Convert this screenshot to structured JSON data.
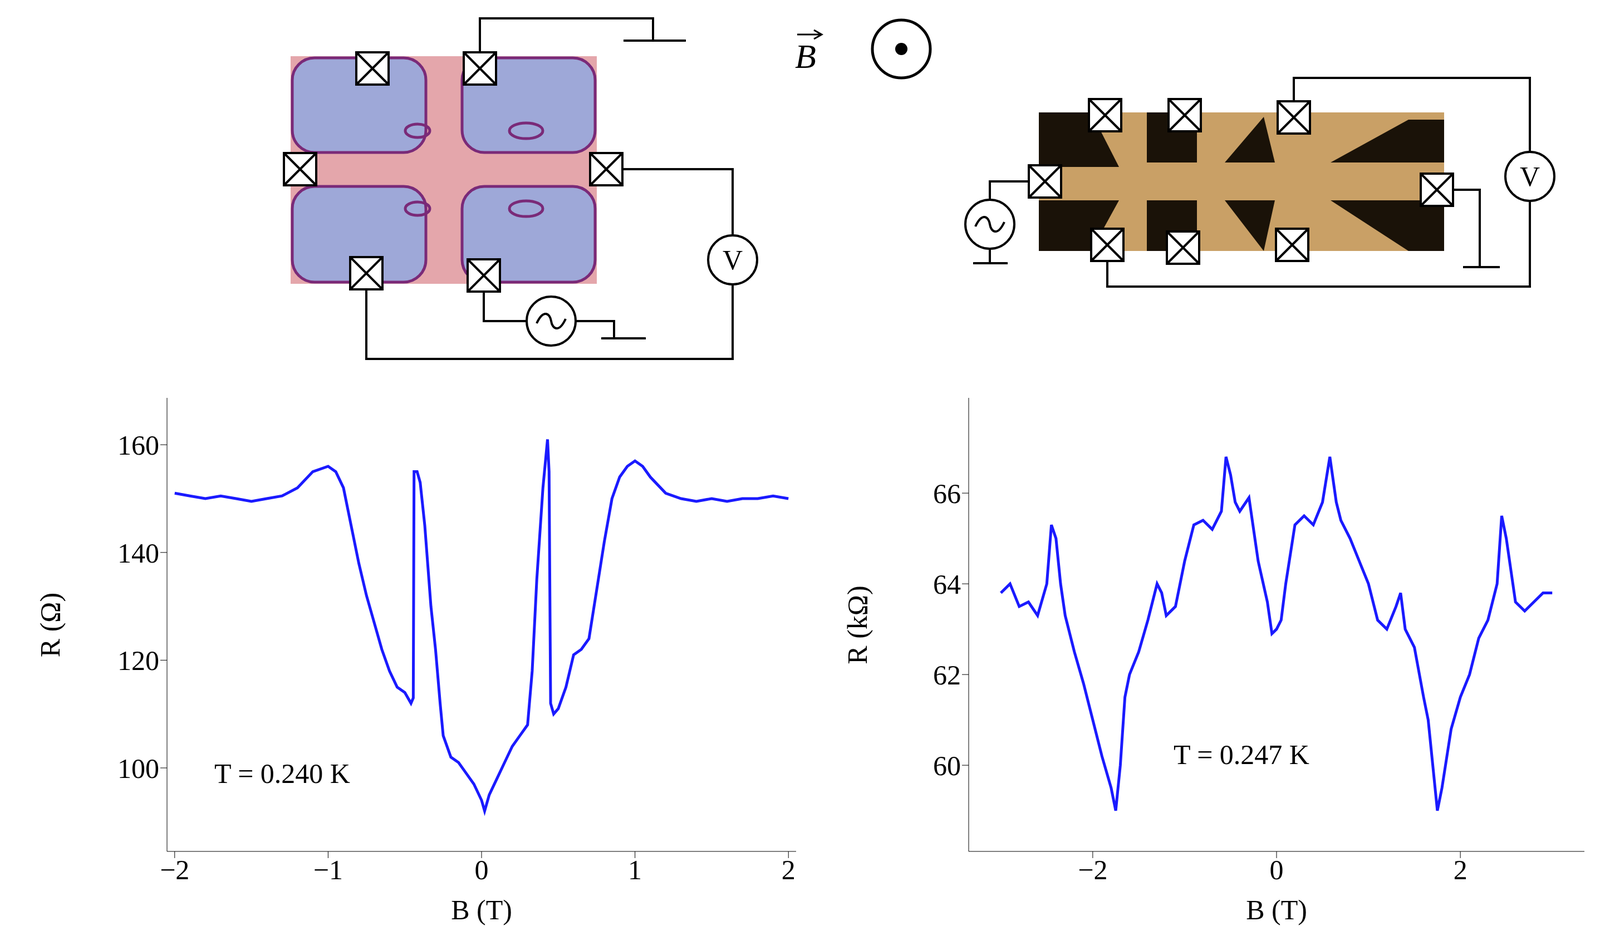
{
  "chart_data": [
    {
      "type": "line",
      "xlabel": "B (T)",
      "ylabel": "R (Ω)",
      "annotation": "T = 0.240 K",
      "color": "#1a1aff",
      "xlim": [
        -2.05,
        2.05
      ],
      "xticks": [
        {
          "value": -2,
          "label": "−2"
        },
        {
          "value": -1,
          "label": "−1"
        },
        0,
        1,
        2
      ],
      "ylim": [
        84.5,
        168.7
      ],
      "yticks": [
        100,
        120,
        140,
        160
      ],
      "x": [
        -2,
        -1.9,
        -1.8,
        -1.7,
        -1.6,
        -1.5,
        -1.4,
        -1.3,
        -1.2,
        -1.1,
        -1.0,
        -0.95,
        -0.9,
        -0.85,
        -0.8,
        -0.75,
        -0.7,
        -0.65,
        -0.6,
        -0.55,
        -0.5,
        -0.46,
        -0.445,
        -0.44,
        -0.42,
        -0.4,
        -0.37,
        -0.33,
        -0.3,
        -0.27,
        -0.25,
        -0.2,
        -0.15,
        -0.1,
        -0.05,
        0,
        0.02,
        0.05,
        0.1,
        0.15,
        0.2,
        0.25,
        0.3,
        0.33,
        0.36,
        0.4,
        0.43,
        0.44,
        0.45,
        0.47,
        0.5,
        0.55,
        0.6,
        0.65,
        0.7,
        0.75,
        0.8,
        0.85,
        0.9,
        0.95,
        1.0,
        1.05,
        1.1,
        1.2,
        1.3,
        1.4,
        1.5,
        1.6,
        1.7,
        1.8,
        1.9,
        2.0
      ],
      "values": [
        151,
        150.5,
        150,
        150.5,
        150,
        149.5,
        150,
        150.5,
        152,
        155,
        156,
        155,
        152,
        145,
        138,
        132,
        127,
        122,
        118,
        115,
        114,
        112,
        113,
        155,
        155,
        153,
        145,
        130,
        122,
        112,
        106,
        102,
        101,
        99,
        97,
        94,
        92,
        95,
        98,
        101,
        104,
        106,
        108,
        118,
        135,
        152,
        161,
        155,
        112,
        110,
        111,
        115,
        121,
        122,
        124,
        133,
        142,
        150,
        154,
        156,
        157,
        156,
        154,
        151,
        150,
        149.5,
        150,
        149.5,
        150,
        150,
        150.5,
        150
      ]
    },
    {
      "type": "line",
      "xlabel": "B (T)",
      "ylabel": "R (kΩ)",
      "annotation": "T = 0.247 K",
      "color": "#1a1aff",
      "xlim": [
        -3.35,
        3.35
      ],
      "xticks": [
        {
          "value": -2,
          "label": "−2"
        },
        0,
        2
      ],
      "ylim": [
        58.1,
        68.1
      ],
      "yticks": [
        60,
        62,
        64,
        66
      ],
      "x": [
        -3.0,
        -2.9,
        -2.8,
        -2.7,
        -2.6,
        -2.5,
        -2.45,
        -2.4,
        -2.35,
        -2.3,
        -2.2,
        -2.1,
        -2.0,
        -1.9,
        -1.8,
        -1.75,
        -1.7,
        -1.65,
        -1.6,
        -1.5,
        -1.4,
        -1.3,
        -1.25,
        -1.2,
        -1.1,
        -1.0,
        -0.9,
        -0.8,
        -0.7,
        -0.6,
        -0.55,
        -0.5,
        -0.45,
        -0.4,
        -0.3,
        -0.2,
        -0.1,
        -0.05,
        0,
        0.05,
        0.1,
        0.2,
        0.3,
        0.4,
        0.5,
        0.58,
        0.65,
        0.7,
        0.8,
        0.9,
        1.0,
        1.1,
        1.2,
        1.3,
        1.35,
        1.4,
        1.5,
        1.6,
        1.65,
        1.7,
        1.75,
        1.8,
        1.9,
        2.0,
        2.1,
        2.2,
        2.3,
        2.4,
        2.45,
        2.5,
        2.6,
        2.7,
        2.8,
        2.9,
        3.0
      ],
      "values": [
        63.8,
        64.0,
        63.5,
        63.6,
        63.3,
        64.0,
        65.3,
        65.0,
        64.0,
        63.3,
        62.5,
        61.8,
        61.0,
        60.2,
        59.5,
        59.0,
        60.0,
        61.5,
        62.0,
        62.5,
        63.2,
        64.0,
        63.8,
        63.3,
        63.5,
        64.5,
        65.3,
        65.4,
        65.2,
        65.6,
        66.8,
        66.4,
        65.8,
        65.6,
        65.9,
        64.5,
        63.6,
        62.9,
        63.0,
        63.2,
        64.0,
        65.3,
        65.5,
        65.3,
        65.8,
        66.8,
        65.8,
        65.4,
        65.0,
        64.5,
        64.0,
        63.2,
        63.0,
        63.5,
        63.8,
        63.0,
        62.6,
        61.5,
        61.0,
        60.0,
        59.0,
        59.5,
        60.8,
        61.5,
        62.0,
        62.8,
        63.2,
        64.0,
        65.5,
        65.0,
        63.6,
        63.4,
        63.6,
        63.8,
        63.8
      ]
    }
  ],
  "diagram": {
    "field_label": "B",
    "voltmeter_label": "V"
  }
}
